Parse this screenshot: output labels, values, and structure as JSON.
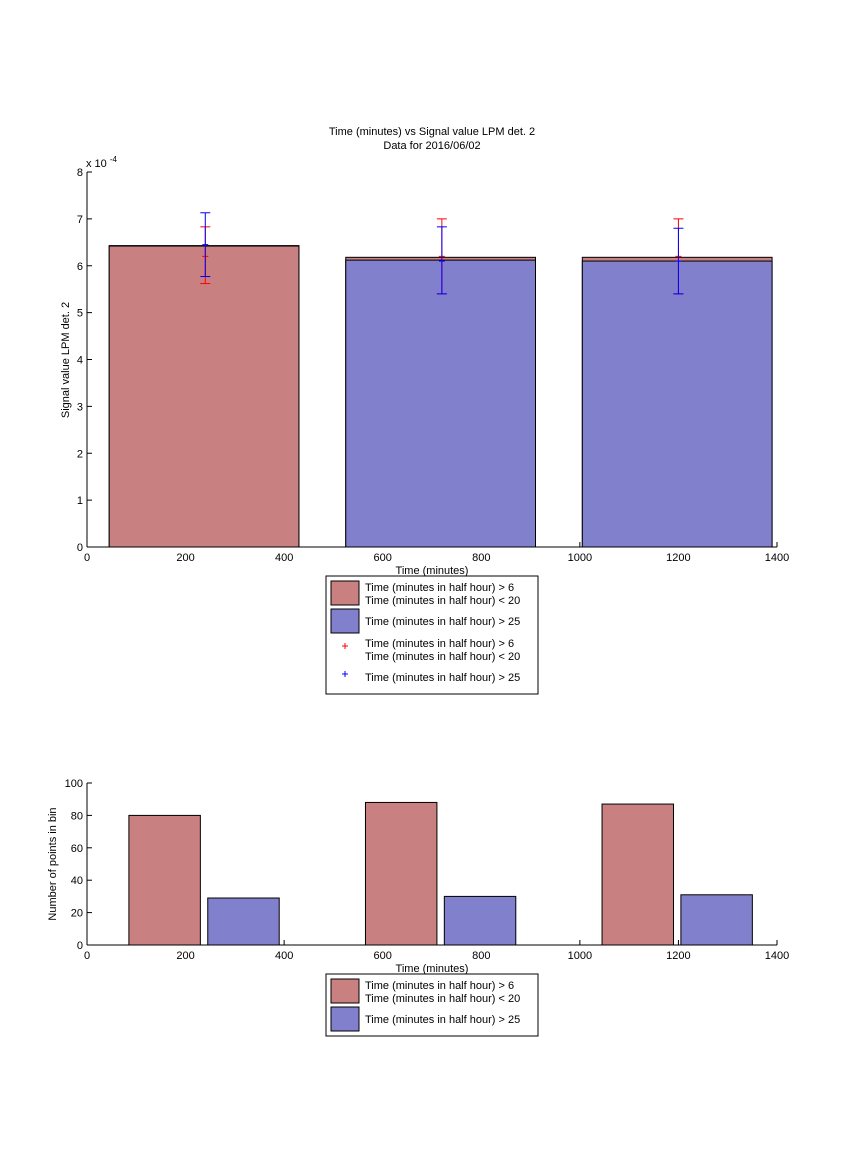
{
  "chart_data": [
    {
      "type": "bar",
      "title": "Time (minutes) vs Signal value LPM det. 2",
      "subtitle": "Data for 2016/06/02",
      "xlabel": "Time (minutes)",
      "ylabel": "Signal value LPM det. 2",
      "y_exponent_label": "x 10",
      "y_exponent_power": "-4",
      "xlim": [
        0,
        1400
      ],
      "ylim": [
        0,
        8
      ],
      "x_ticks": [
        "0",
        "200",
        "400",
        "600",
        "800",
        "1000",
        "1200",
        "1400"
      ],
      "y_ticks": [
        "0",
        "1",
        "2",
        "3",
        "4",
        "5",
        "6",
        "7",
        "8"
      ],
      "categories": [
        240,
        720,
        1200
      ],
      "bar_x_ranges": [
        [
          45,
          430
        ],
        [
          525,
          910
        ],
        [
          1005,
          1390
        ]
      ],
      "series": [
        {
          "name": "Time (minutes in half hour) > 6\nTime (minutes in half hour) < 20",
          "color": "#c98080",
          "values": [
            6.42,
            6.18,
            6.18
          ]
        },
        {
          "name": "Time (minutes in half hour) > 25",
          "color": "#8080cc",
          "values": [
            6.43,
            6.12,
            6.1
          ]
        }
      ],
      "error_bars": [
        {
          "name": "Time (minutes in half hour) > 6\nTime (minutes in half hour) < 20",
          "color": "#ff0000",
          "marker": "+",
          "x": [
            240,
            720,
            1200
          ],
          "center": [
            6.2,
            6.2,
            6.2
          ],
          "lower": [
            5.62,
            5.4,
            5.4
          ],
          "upper": [
            6.83,
            7.0,
            7.0
          ]
        },
        {
          "name": "Time (minutes in half hour) > 25",
          "color": "#0000ff",
          "marker": "+",
          "x": [
            240,
            720,
            1200
          ],
          "center": [
            6.45,
            6.1,
            6.1
          ],
          "lower": [
            5.77,
            5.4,
            5.4
          ],
          "upper": [
            7.13,
            6.83,
            6.8
          ]
        }
      ],
      "legend": {
        "position": "below",
        "entries": [
          {
            "kind": "patch",
            "color": "#c98080",
            "line1": "Time (minutes in half hour) > 6",
            "line2": "Time (minutes in half hour) < 20"
          },
          {
            "kind": "patch",
            "color": "#8080cc",
            "line1": "Time (minutes in half hour) > 25",
            "line2": ""
          },
          {
            "kind": "marker",
            "color": "#ff0000",
            "line1": "Time (minutes in half hour) > 6",
            "line2": "Time (minutes in half hour) < 20"
          },
          {
            "kind": "marker",
            "color": "#0000ff",
            "line1": "Time (minutes in half hour) > 25",
            "line2": ""
          }
        ]
      }
    },
    {
      "type": "bar",
      "title": "",
      "xlabel": "Time (minutes)",
      "ylabel": "Number of points in bin",
      "xlim": [
        0,
        1400
      ],
      "ylim": [
        0,
        100
      ],
      "x_ticks": [
        "0",
        "200",
        "400",
        "600",
        "800",
        "1000",
        "1200",
        "1400"
      ],
      "y_ticks": [
        "0",
        "20",
        "40",
        "60",
        "80",
        "100"
      ],
      "bars": [
        {
          "series": 0,
          "x0": 85,
          "x1": 230,
          "value": 80
        },
        {
          "series": 1,
          "x0": 245,
          "x1": 390,
          "value": 29
        },
        {
          "series": 0,
          "x0": 565,
          "x1": 710,
          "value": 88
        },
        {
          "series": 1,
          "x0": 725,
          "x1": 870,
          "value": 30
        },
        {
          "series": 0,
          "x0": 1045,
          "x1": 1190,
          "value": 87
        },
        {
          "series": 1,
          "x0": 1205,
          "x1": 1350,
          "value": 31
        }
      ],
      "series": [
        {
          "name": "Time (minutes in half hour) > 6\nTime (minutes in half hour) < 20",
          "color": "#c98080"
        },
        {
          "name": "Time (minutes in half hour) > 25",
          "color": "#8080cc"
        }
      ],
      "legend": {
        "position": "below",
        "entries": [
          {
            "kind": "patch",
            "color": "#c98080",
            "line1": "Time (minutes in half hour) > 6",
            "line2": "Time (minutes in half hour) < 20"
          },
          {
            "kind": "patch",
            "color": "#8080cc",
            "line1": "Time (minutes in half hour) > 25",
            "line2": ""
          }
        ]
      }
    }
  ]
}
